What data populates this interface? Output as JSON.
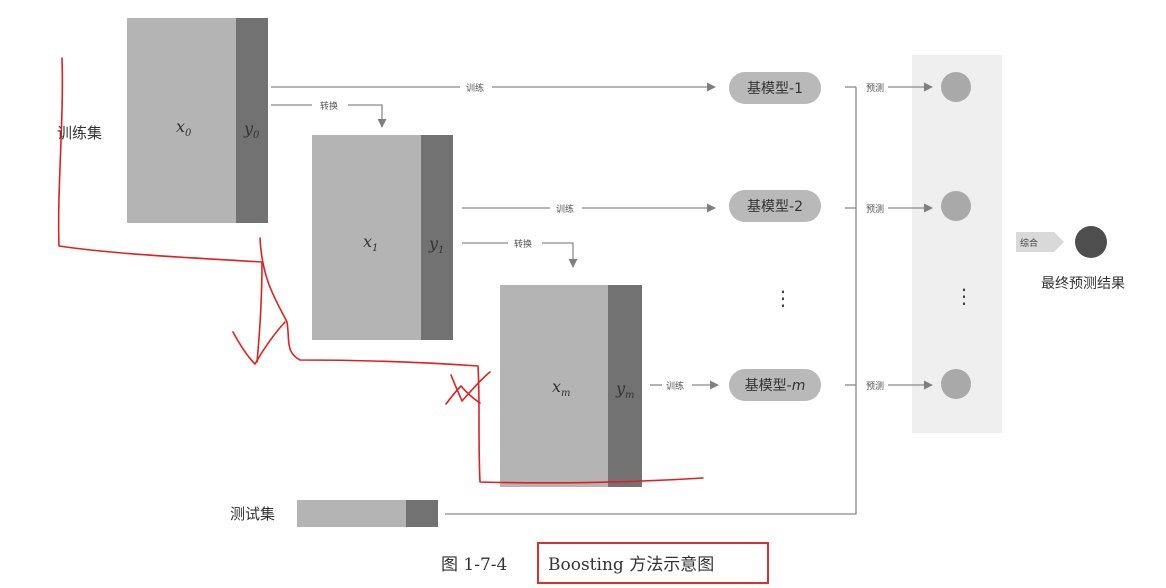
{
  "labels": {
    "train_set": "训练集",
    "test_set": "测试集",
    "x0": "x",
    "x0_sub": "0",
    "y0": "y",
    "y0_sub": "0",
    "x1": "x",
    "x1_sub": "1",
    "y1": "y",
    "y1_sub": "1",
    "xm": "x",
    "xm_sub": "m",
    "ym": "y",
    "ym_sub": "m"
  },
  "edges": {
    "train": "训练",
    "transform": "转换",
    "predict": "预测",
    "combine": "综合"
  },
  "models": {
    "m1": "基模型-1",
    "m2": "基模型-2",
    "mm_prefix": "基模型-",
    "mm_suffix": "m"
  },
  "final_result": "最终预测结果",
  "ellipsis": "⋮",
  "caption": {
    "number": "图 1-7-4",
    "title": "Boosting 方法示意图"
  },
  "colors": {
    "x_block": "#b4b4b4",
    "y_block": "#727272",
    "model_pill": "#b9b9b9",
    "prediction_dot": "#a9a9a9",
    "final_dot": "#4e4e4e",
    "arrow": "#7f7f7f",
    "panel": "#efefef",
    "annotation_red": "#e02020",
    "caption_border": "#d93030"
  }
}
